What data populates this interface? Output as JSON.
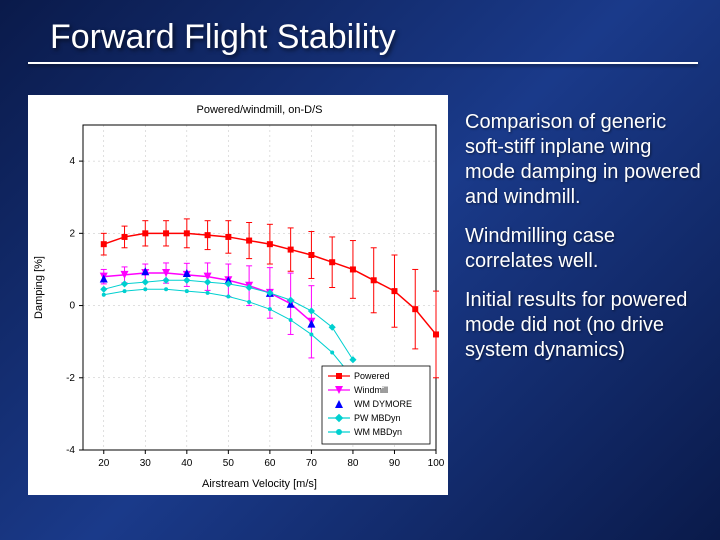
{
  "title": "Forward Flight Stability",
  "bullets": [
    "Comparison of generic soft-stiff inplane wing mode damping in powered and windmill.",
    "Windmilling case correlates well.",
    "Initial results for powered mode did not (no drive system dynamics)"
  ],
  "chart": {
    "type": "scatter-line-errorbar",
    "plot_title": "Powered/windmill, on-D/S",
    "title_fontsize": 11,
    "xlabel": "Airstream Velocity [m/s]",
    "ylabel": "Damping [%]",
    "label_fontsize": 11,
    "tick_fontsize": 10,
    "xlim": [
      15,
      100
    ],
    "ylim": [
      -4,
      5
    ],
    "xticks": [
      20,
      30,
      40,
      50,
      60,
      70,
      80,
      90,
      100
    ],
    "yticks": [
      -4,
      -2,
      0,
      2,
      4
    ],
    "background_color": "#ffffff",
    "grid_color": "#bfbfbf",
    "grid_dash": "2,3",
    "axis_color": "#000000",
    "legend": {
      "position": "lower-right",
      "border_color": "#000000",
      "bg": "#ffffff",
      "fontsize": 9,
      "items": [
        {
          "label": "Powered",
          "color": "#ff0000",
          "marker": "square",
          "has_line": true
        },
        {
          "label": "Windmill",
          "color": "#ff00ff",
          "marker": "triangle-down",
          "has_line": true
        },
        {
          "label": "WM DYMORE",
          "color": "#0000ff",
          "marker": "triangle-up",
          "has_line": false
        },
        {
          "label": "PW MBDyn",
          "color": "#00d0d0",
          "marker": "diamond",
          "has_line": true
        },
        {
          "label": "WM MBDyn",
          "color": "#00d0d0",
          "marker": "circle",
          "has_line": true
        }
      ]
    },
    "series": [
      {
        "name": "Powered",
        "color": "#ff0000",
        "marker": "square",
        "markersize": 6,
        "has_line": true,
        "line_width": 1.5,
        "x": [
          20,
          25,
          30,
          35,
          40,
          45,
          50,
          55,
          60,
          65,
          70,
          75,
          80,
          85,
          90,
          95,
          100
        ],
        "y": [
          1.7,
          1.9,
          2.0,
          2.0,
          2.0,
          1.95,
          1.9,
          1.8,
          1.7,
          1.55,
          1.4,
          1.2,
          1.0,
          0.7,
          0.4,
          -0.1,
          -0.8
        ],
        "has_err": true,
        "err": [
          0.3,
          0.3,
          0.35,
          0.35,
          0.4,
          0.4,
          0.45,
          0.5,
          0.55,
          0.6,
          0.65,
          0.7,
          0.8,
          0.9,
          1.0,
          1.1,
          1.2
        ]
      },
      {
        "name": "Windmill",
        "color": "#ff00ff",
        "marker": "triangle-down",
        "markersize": 6,
        "has_line": true,
        "line_width": 1.5,
        "x": [
          20,
          25,
          30,
          35,
          40,
          45,
          50,
          55,
          60,
          65,
          70
        ],
        "y": [
          0.8,
          0.85,
          0.9,
          0.9,
          0.85,
          0.8,
          0.7,
          0.55,
          0.35,
          0.05,
          -0.45
        ],
        "has_err": true,
        "err": [
          0.2,
          0.22,
          0.25,
          0.28,
          0.32,
          0.38,
          0.45,
          0.55,
          0.7,
          0.85,
          1.0
        ]
      },
      {
        "name": "WM DYMORE",
        "color": "#0000ff",
        "marker": "triangle-up",
        "markersize": 6,
        "has_line": false,
        "x": [
          20,
          30,
          40,
          50,
          60,
          65,
          70
        ],
        "y": [
          0.75,
          0.95,
          0.9,
          0.7,
          0.35,
          0.05,
          -0.5
        ],
        "has_err": false
      },
      {
        "name": "PW MBDyn",
        "color": "#00d0d0",
        "marker": "diamond",
        "markersize": 5,
        "has_line": true,
        "line_width": 1,
        "x": [
          20,
          25,
          30,
          35,
          40,
          45,
          50,
          55,
          60,
          65,
          70,
          75,
          80
        ],
        "y": [
          0.45,
          0.6,
          0.65,
          0.7,
          0.7,
          0.65,
          0.6,
          0.5,
          0.35,
          0.15,
          -0.15,
          -0.6,
          -1.5
        ],
        "has_err": false
      },
      {
        "name": "WM MBDyn",
        "color": "#00d0d0",
        "marker": "circle",
        "markersize": 4,
        "has_line": true,
        "line_width": 1,
        "x": [
          20,
          25,
          30,
          35,
          40,
          45,
          50,
          55,
          60,
          65,
          70,
          75,
          80
        ],
        "y": [
          0.3,
          0.4,
          0.45,
          0.45,
          0.4,
          0.35,
          0.25,
          0.1,
          -0.1,
          -0.4,
          -0.8,
          -1.3,
          -2.0
        ],
        "has_err": false
      }
    ]
  }
}
